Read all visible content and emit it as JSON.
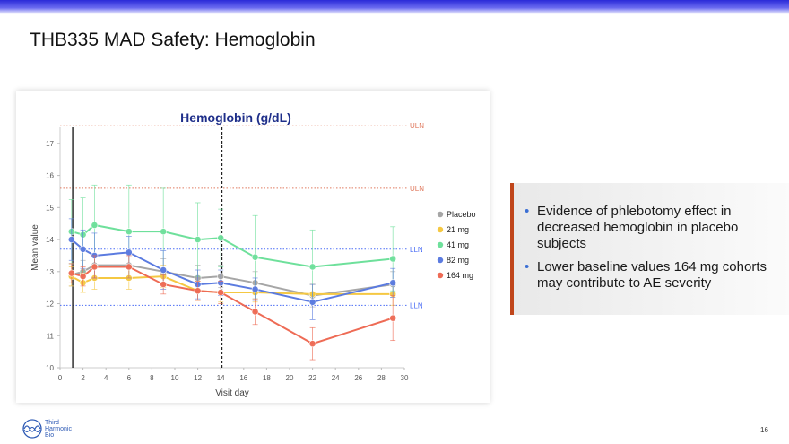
{
  "slide": {
    "title": "THB335 MAD Safety: Hemoglobin",
    "page_number": "16",
    "bullets": [
      "Evidence of phlebotomy effect in decreased hemoglobin in placebo subjects",
      "Lower baseline values 164 mg cohorts may contribute to AE severity"
    ],
    "logo": {
      "line1": "Third",
      "line2": "Harmonic",
      "line3": "Bio"
    },
    "accent_color": "#c0461b",
    "bullet_color": "#3b6fd4"
  },
  "chart_data": {
    "type": "line",
    "title": "Hemoglobin (g/dL)",
    "xlabel": "Visit day",
    "ylabel": "Mean value",
    "xlim": [
      0,
      30
    ],
    "ylim": [
      10,
      17.5
    ],
    "xticks": [
      0,
      2,
      4,
      6,
      8,
      10,
      12,
      14,
      16,
      18,
      20,
      22,
      24,
      26,
      28,
      30
    ],
    "yticks": [
      10,
      11,
      12,
      13,
      14,
      15,
      16,
      17
    ],
    "vertical_lines": [
      {
        "x": 1.1,
        "style": "solid",
        "color": "#222222"
      },
      {
        "x": 14.1,
        "style": "dashed",
        "color": "#222222"
      }
    ],
    "reference_lines": [
      {
        "y": 17.55,
        "label": "ULN",
        "color": "#e07a5f"
      },
      {
        "y": 15.6,
        "label": "ULN",
        "color": "#e07a5f"
      },
      {
        "y": 13.7,
        "label": "LLN",
        "color": "#4c6ef5"
      },
      {
        "y": 11.95,
        "label": "LLN",
        "color": "#4c6ef5"
      }
    ],
    "series": [
      {
        "name": "Placebo",
        "color": "#a6a6a6",
        "x": [
          1,
          2,
          3,
          6,
          9,
          12,
          14,
          17,
          22,
          29
        ],
        "y": [
          12.9,
          13.0,
          13.2,
          13.2,
          13.0,
          12.8,
          12.85,
          12.65,
          12.25,
          12.6
        ],
        "err": [
          0.35,
          0.35,
          0.35,
          0.4,
          0.4,
          0.4,
          0.35,
          0.35,
          0.35,
          0.4
        ]
      },
      {
        "name": "21 mg",
        "color": "#f5c842",
        "x": [
          1,
          2,
          3,
          6,
          9,
          12,
          14,
          17,
          22,
          29
        ],
        "y": [
          12.85,
          12.65,
          12.8,
          12.8,
          12.85,
          12.4,
          12.35,
          12.35,
          12.3,
          12.3
        ],
        "err": [
          0.3,
          0.3,
          0.35,
          0.35,
          0.35,
          0.3,
          0.3,
          0.3,
          0.3,
          0.35
        ]
      },
      {
        "name": "41 mg",
        "color": "#6ee09b",
        "x": [
          1,
          2,
          3,
          6,
          9,
          12,
          14,
          17,
          22,
          29
        ],
        "y": [
          14.25,
          14.15,
          14.45,
          14.25,
          14.25,
          14.0,
          14.05,
          13.45,
          13.15,
          13.4
        ],
        "err": [
          1.0,
          1.15,
          1.25,
          1.45,
          1.35,
          1.15,
          0.9,
          1.3,
          1.15,
          1.0
        ]
      },
      {
        "name": "82 mg",
        "color": "#5b7be0",
        "x": [
          1,
          2,
          3,
          6,
          9,
          12,
          14,
          17,
          22,
          29
        ],
        "y": [
          14.0,
          13.7,
          13.5,
          13.6,
          13.05,
          12.6,
          12.65,
          12.45,
          12.05,
          12.65
        ],
        "err": [
          0.65,
          0.6,
          0.7,
          0.5,
          0.6,
          0.45,
          0.4,
          0.35,
          0.55,
          0.45
        ]
      },
      {
        "name": "164 mg",
        "color": "#ee6b55",
        "x": [
          1,
          2,
          3,
          6,
          9,
          12,
          14,
          17,
          22,
          29
        ],
        "y": [
          12.95,
          12.85,
          13.15,
          13.15,
          12.6,
          12.4,
          12.35,
          11.75,
          10.75,
          11.55
        ],
        "err": [
          0.3,
          0.3,
          0.35,
          0.35,
          0.3,
          0.3,
          0.35,
          0.4,
          0.5,
          0.7
        ]
      }
    ]
  }
}
